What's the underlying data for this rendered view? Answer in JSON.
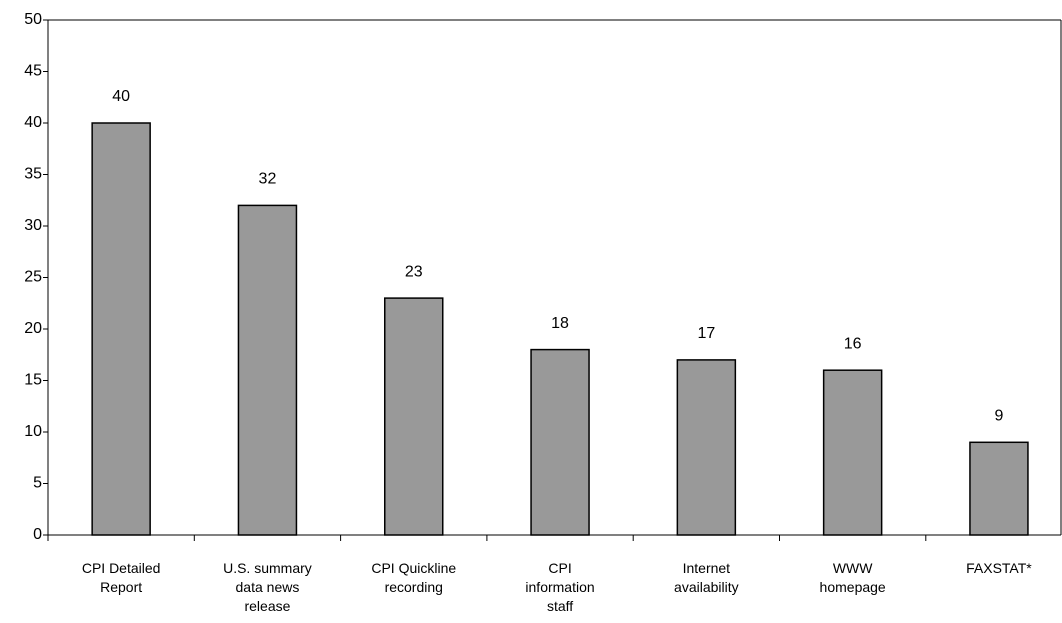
{
  "chart_data": {
    "type": "bar",
    "categories": [
      "CPI Detailed Report",
      "U.S. summary data news release",
      "CPI Quickline recording",
      "CPI information staff",
      "Internet availability",
      "WWW homepage",
      "FAXSTAT*"
    ],
    "values": [
      40,
      32,
      23,
      18,
      17,
      16,
      9
    ],
    "color": "#999999",
    "ylim": [
      0,
      50
    ],
    "yticks": [
      0,
      5,
      10,
      15,
      20,
      25,
      30,
      35,
      40,
      45,
      50
    ],
    "grid": false
  }
}
